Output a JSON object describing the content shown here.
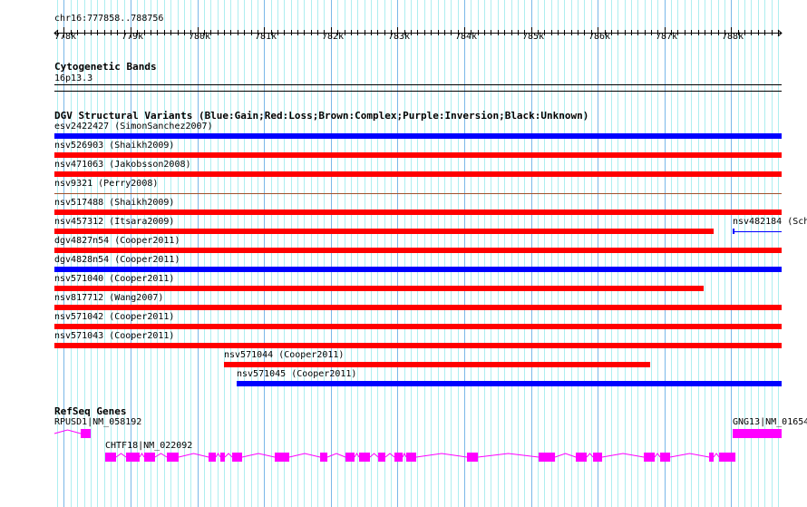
{
  "view": {
    "chrom": "chr16",
    "start": 777858,
    "end": 788756,
    "position_label": "chr16:777858..788756"
  },
  "ruler": {
    "ticks": [
      "778k",
      "779k",
      "780k",
      "781k",
      "782k",
      "783k",
      "784k",
      "785k",
      "786k",
      "787k",
      "788k"
    ]
  },
  "colors": {
    "gain": "#0000ff",
    "loss": "#ff0000",
    "complex": "#a0522d",
    "gene": "#ff00ff",
    "major_grid": "#7ab8e8",
    "minor_grid": "#aeeef0"
  },
  "cytobands": {
    "title": "Cytogenetic Bands",
    "band": "16p13.3"
  },
  "dgv": {
    "title": "DGV Structural Variants (Blue:Gain;Red:Loss;Brown:Complex;Purple:Inversion;Black:Unknown)",
    "variants": [
      {
        "label": "esv2422427 (SimonSanchez2007)",
        "type": "gain",
        "start": 777858,
        "end": 788756,
        "row": 0
      },
      {
        "label": "nsv526903 (Shaikh2009)",
        "type": "loss",
        "start": 777858,
        "end": 788756,
        "row": 1
      },
      {
        "label": "nsv471063 (Jakobsson2008)",
        "type": "loss",
        "start": 777858,
        "end": 788756,
        "row": 2
      },
      {
        "label": "nsv9321 (Perry2008)",
        "type": "complex",
        "start": 777858,
        "end": 788756,
        "row": 3
      },
      {
        "label": "nsv517488 (Shaikh2009)",
        "type": "loss",
        "start": 777858,
        "end": 788756,
        "row": 4
      },
      {
        "label": "nsv457312 (Itsara2009)",
        "type": "loss",
        "start": 777858,
        "end": 787738,
        "row": 5
      },
      {
        "label": "nsv482184 (Sch",
        "type": "gain",
        "start": 788023,
        "end": 788756,
        "row": 5,
        "thin": true
      },
      {
        "label": "dgv4827n54 (Cooper2011)",
        "type": "loss",
        "start": 777858,
        "end": 788756,
        "row": 6
      },
      {
        "label": "dgv4828n54 (Cooper2011)",
        "type": "gain",
        "start": 777858,
        "end": 788756,
        "row": 7
      },
      {
        "label": "nsv571040 (Cooper2011)",
        "type": "loss",
        "start": 777858,
        "end": 787588,
        "row": 8
      },
      {
        "label": "nsv817712 (Wang2007)",
        "type": "loss",
        "start": 777858,
        "end": 788756,
        "row": 9
      },
      {
        "label": "nsv571042 (Cooper2011)",
        "type": "loss",
        "start": 777858,
        "end": 788756,
        "row": 10
      },
      {
        "label": "nsv571043 (Cooper2011)",
        "type": "loss",
        "start": 777858,
        "end": 788756,
        "row": 11
      },
      {
        "label": "nsv571044 (Cooper2011)",
        "type": "loss",
        "start": 780399,
        "end": 786786,
        "row": 12
      },
      {
        "label": "nsv571045 (Cooper2011)",
        "type": "gain",
        "start": 780590,
        "end": 788756,
        "row": 13
      }
    ]
  },
  "genes": {
    "title": "RefSeq Genes",
    "items": [
      {
        "label": "RPUSD1|NM_058192",
        "start": 777858,
        "end": 778402,
        "row": 0,
        "exons": [
          [
            778252,
            778402
          ]
        ]
      },
      {
        "label": "GNG13|NM_01654",
        "start": 788023,
        "end": 788756,
        "row": 0,
        "exons": [
          [
            788023,
            788756
          ]
        ]
      },
      {
        "label": "CHTF18|NM_022092",
        "start": 778619,
        "end": 788064,
        "row": 1,
        "exons": [
          [
            778619,
            778782
          ],
          [
            778932,
            779135
          ],
          [
            779203,
            779366
          ],
          [
            779543,
            779720
          ],
          [
            780168,
            780277
          ],
          [
            780345,
            780413
          ],
          [
            780522,
            780671
          ],
          [
            781160,
            781378
          ],
          [
            781840,
            781949
          ],
          [
            782220,
            782356
          ],
          [
            782424,
            782587
          ],
          [
            782710,
            782818
          ],
          [
            782954,
            783077
          ],
          [
            783131,
            783280
          ],
          [
            784041,
            784205
          ],
          [
            785115,
            785360
          ],
          [
            785672,
            785835
          ],
          [
            785930,
            786066
          ],
          [
            786692,
            786855
          ],
          [
            786936,
            787086
          ],
          [
            787670,
            787738
          ],
          [
            787819,
            788064
          ]
        ]
      }
    ]
  }
}
